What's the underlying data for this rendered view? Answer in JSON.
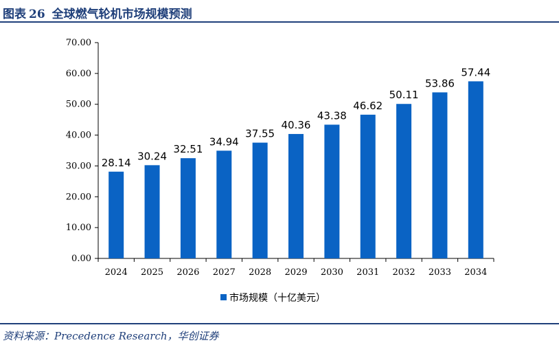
{
  "header": {
    "figure_label": "图表",
    "figure_number": "26",
    "title": "全球燃气轮机市场规模预测"
  },
  "source": "资料来源：Precedence Research，华创证券",
  "colors": {
    "bar": "#0a63c4",
    "accent": "#1f3f7a"
  },
  "chart_data": {
    "type": "bar",
    "categories": [
      "2024",
      "2025",
      "2026",
      "2027",
      "2028",
      "2029",
      "2030",
      "2031",
      "2032",
      "2033",
      "2034"
    ],
    "series": [
      {
        "name": "市场规模（十亿美元）",
        "values": [
          28.14,
          30.24,
          32.51,
          34.94,
          37.55,
          40.36,
          43.38,
          46.62,
          50.11,
          53.86,
          57.44
        ]
      }
    ],
    "ylim": [
      0,
      70
    ],
    "yticks": [
      "0.00",
      "10.00",
      "20.00",
      "30.00",
      "40.00",
      "50.00",
      "60.00",
      "70.00"
    ],
    "data_labels": [
      "28.14",
      "30.24",
      "32.51",
      "34.94",
      "37.55",
      "40.36",
      "43.38",
      "46.62",
      "50.11",
      "53.86",
      "57.44"
    ],
    "legend_position": "bottom",
    "grid": false
  }
}
